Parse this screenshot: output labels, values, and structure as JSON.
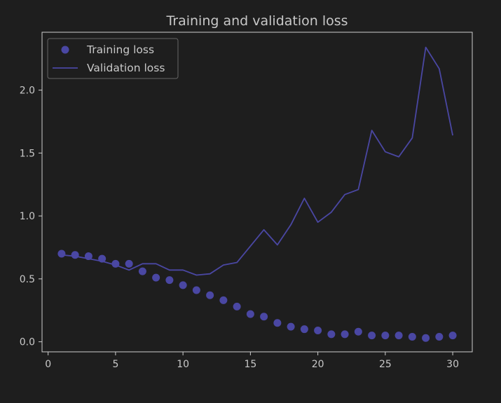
{
  "chart_data": {
    "type": "line",
    "title": "Training and validation loss",
    "xlabel": "",
    "ylabel": "",
    "xlim": [
      -0.45,
      31.45
    ],
    "ylim": [
      -0.08,
      2.46
    ],
    "x_ticks": [
      0,
      5,
      10,
      15,
      20,
      25,
      30
    ],
    "x_tick_labels": [
      "0",
      "5",
      "10",
      "15",
      "20",
      "25",
      "30"
    ],
    "y_ticks": [
      0.0,
      0.5,
      1.0,
      1.5,
      2.0
    ],
    "y_tick_labels": [
      "0.0",
      "0.5",
      "1.0",
      "1.5",
      "2.0"
    ],
    "grid": false,
    "legend_position": "top-left",
    "x": [
      1,
      2,
      3,
      4,
      5,
      6,
      7,
      8,
      9,
      10,
      11,
      12,
      13,
      14,
      15,
      16,
      17,
      18,
      19,
      20,
      21,
      22,
      23,
      24,
      25,
      26,
      27,
      28,
      29,
      30
    ],
    "series": [
      {
        "name": "Training loss",
        "style": "points",
        "color": "#4a47a3",
        "values": [
          0.7,
          0.69,
          0.68,
          0.66,
          0.62,
          0.62,
          0.56,
          0.51,
          0.49,
          0.45,
          0.41,
          0.37,
          0.33,
          0.28,
          0.22,
          0.2,
          0.15,
          0.12,
          0.1,
          0.09,
          0.06,
          0.06,
          0.08,
          0.05,
          0.05,
          0.05,
          0.04,
          0.03,
          0.04,
          0.05
        ]
      },
      {
        "name": "Validation loss",
        "style": "line",
        "color": "#4a47a3",
        "values": [
          0.69,
          0.68,
          0.66,
          0.64,
          0.61,
          0.57,
          0.62,
          0.62,
          0.57,
          0.57,
          0.53,
          0.54,
          0.61,
          0.63,
          0.76,
          0.89,
          0.77,
          0.93,
          1.14,
          0.95,
          1.03,
          1.17,
          1.21,
          1.68,
          1.51,
          1.47,
          1.62,
          2.34,
          2.17,
          1.64
        ]
      }
    ]
  }
}
